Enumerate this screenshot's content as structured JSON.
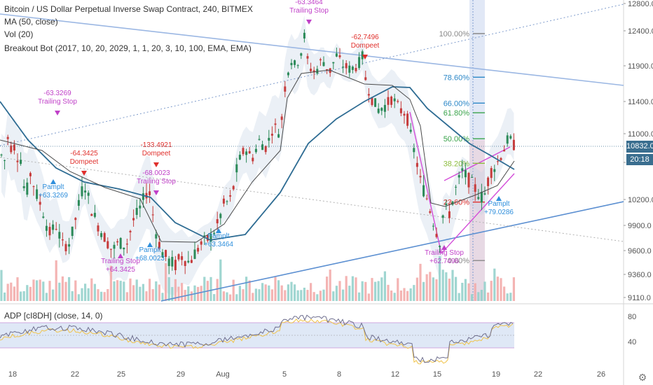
{
  "legend": {
    "title": "Bitcoin / US Dollar Perpetual Inverse Swap Contract, 240, BITMEX",
    "ma": "MA (50, close)",
    "vol": "Vol (20)",
    "bot": "Breakout Bot (2017, 10, 20, 2029, 1, 1, 20, 3, 10, 100, EMA, EMA)"
  },
  "sub_legend": "ADP [cI8DH] (close, 14, 0)",
  "price_label": "10832.0",
  "time_label": "20:18",
  "colors": {
    "up": "#26a69a",
    "down": "#ef5350",
    "ma": "#2e6c93",
    "trend": "#5b8fd1",
    "signal_buy": "#2f8fdc",
    "signal_sell": "#e0302c",
    "trailing": "#c040c8",
    "fib_blue": "#2b87c7",
    "fib_green": "#39a34a",
    "fib_grey": "#888888"
  },
  "chart_data": {
    "type": "candlestick",
    "x_ticks": [
      "18",
      "22",
      "25",
      "29",
      "Aug",
      "5",
      "8",
      "12",
      "15",
      "19",
      "22",
      "26"
    ],
    "y_ticks": [
      12800,
      12400,
      11900,
      11400,
      11000,
      10600,
      10200,
      9900,
      9600,
      9360,
      9110
    ],
    "y_tick_labels": [
      "12800.0",
      "12400.0",
      "11900.0",
      "11400.0",
      "11000.0",
      "10600.0",
      "10200.0",
      "9900.0",
      "9600.0",
      "9360.0",
      "9110.0"
    ],
    "last_price": 10832.0,
    "fib_levels": [
      {
        "label": "100.00%",
        "price": 12360,
        "color": "#888888"
      },
      {
        "label": "78.60%",
        "price": 11740,
        "color": "#2b87c7"
      },
      {
        "label": "66.00%",
        "price": 11380,
        "color": "#2b87c7"
      },
      {
        "label": "61.80%",
        "price": 11260,
        "color": "#39a34a"
      },
      {
        "label": "50.00%",
        "price": 10930,
        "color": "#39a34a"
      },
      {
        "label": "38.20%",
        "price": 10590,
        "color": "#8dbd3e"
      },
      {
        "label": "23.60%",
        "price": 10170,
        "color": "#e0302c"
      },
      {
        "label": "0.00%",
        "price": 9500,
        "color": "#888888"
      }
    ],
    "annotations": [
      {
        "lines": [
          "-63.3269",
          "Trailing Stop"
        ],
        "kind": "trailing",
        "x_day": 19.0
      },
      {
        "lines": [
          "-64.3425",
          "Dompeet"
        ],
        "kind": "sell",
        "x_day": 21.6
      },
      {
        "lines": [
          "Pamplt",
          "+63.3269"
        ],
        "kind": "buy",
        "x_day": 19.2
      },
      {
        "lines": [
          "-133.4921",
          "Dompeet"
        ],
        "kind": "sell",
        "x_day": 27.0
      },
      {
        "lines": [
          "-68.0023",
          "Trailing Stop"
        ],
        "kind": "trailing",
        "x_day": 27.2
      },
      {
        "lines": [
          "Trailing Stop",
          "+64.3425"
        ],
        "kind": "trailing",
        "x_day": 24.8
      },
      {
        "lines": [
          "Pamplt",
          "+68.0023"
        ],
        "kind": "buy",
        "x_day": 26.2
      },
      {
        "lines": [
          "Pamplt",
          "+63.3464"
        ],
        "kind": "buy",
        "x_day": 31.5
      },
      {
        "lines": [
          "-63.3464",
          "Trailing Stop"
        ],
        "kind": "trailing",
        "x_day": 37.3
      },
      {
        "lines": [
          "-62.7496",
          "Dompeet"
        ],
        "kind": "sell",
        "x_day": 41.2
      },
      {
        "lines": [
          "Trailing Stop",
          "+62.7496"
        ],
        "kind": "trailing",
        "x_day": 46.0
      },
      {
        "lines": [
          "Pamplt",
          "+79.0286"
        ],
        "kind": "buy",
        "x_day": 50.0
      }
    ],
    "adp_ticks": [
      80,
      40
    ],
    "adp_tick_labels": [
      "80",
      "40"
    ]
  }
}
